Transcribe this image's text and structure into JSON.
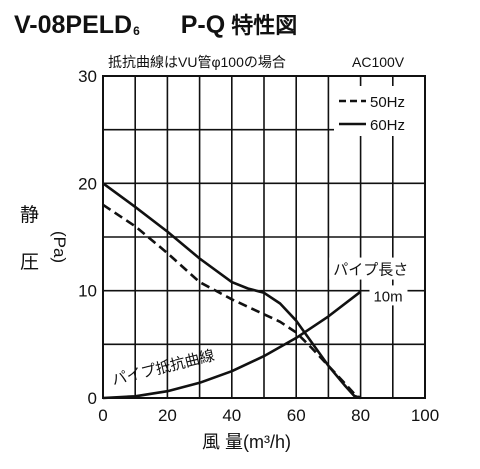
{
  "header": {
    "model": "V-08PELD",
    "model_suffix": "6",
    "chart_code": "P-Q",
    "chart_kind": "特性図"
  },
  "chart_data": {
    "type": "line",
    "subtitle": "抵抗曲線はVU管φ100の場合",
    "voltage": "AC100V",
    "xlabel": "風 量(m³/h)",
    "ylabel_main": [
      "静",
      "圧"
    ],
    "ylabel_unit": "(Pa)",
    "xlim": [
      0,
      100
    ],
    "ylim": [
      0,
      30
    ],
    "x_ticks": [
      0,
      20,
      40,
      60,
      80,
      100
    ],
    "y_ticks": [
      0,
      10,
      20,
      30
    ],
    "x_grid": [
      0,
      10,
      20,
      30,
      40,
      50,
      60,
      70,
      80,
      90,
      100
    ],
    "y_grid": [
      0,
      5,
      10,
      15,
      20,
      25,
      30
    ],
    "grid": true,
    "legend_position": "top-right",
    "series": [
      {
        "name": "50Hz",
        "style": "dashed",
        "x": [
          0,
          10,
          20,
          30,
          40,
          45,
          50,
          55,
          60,
          65,
          70,
          75,
          78,
          80
        ],
        "y": [
          18,
          16,
          13.5,
          10.8,
          9.2,
          8.5,
          7.8,
          7.1,
          6.1,
          4.6,
          3.0,
          1.4,
          0.4,
          0
        ]
      },
      {
        "name": "60Hz",
        "style": "solid",
        "x": [
          0,
          10,
          20,
          30,
          40,
          45,
          50,
          55,
          60,
          65,
          70,
          75,
          78,
          80
        ],
        "y": [
          20,
          17.8,
          15.5,
          13,
          10.8,
          10.2,
          9.8,
          8.8,
          7.2,
          5.1,
          3.0,
          1.2,
          0.2,
          0
        ]
      },
      {
        "name": "パイプ抵抗曲線",
        "style": "solid",
        "x": [
          0,
          10,
          20,
          30,
          40,
          50,
          60,
          70,
          80
        ],
        "y": [
          0,
          0.16,
          0.63,
          1.42,
          2.5,
          3.9,
          5.6,
          7.6,
          9.9
        ]
      }
    ],
    "annotations": [
      {
        "text": "パイプ抵抗曲線",
        "x": 20,
        "y": 2.5
      },
      {
        "text": "パイプ長さ",
        "x": 74,
        "y": 11.5
      },
      {
        "text": "10m",
        "x": 84,
        "y": 9.0
      }
    ]
  }
}
